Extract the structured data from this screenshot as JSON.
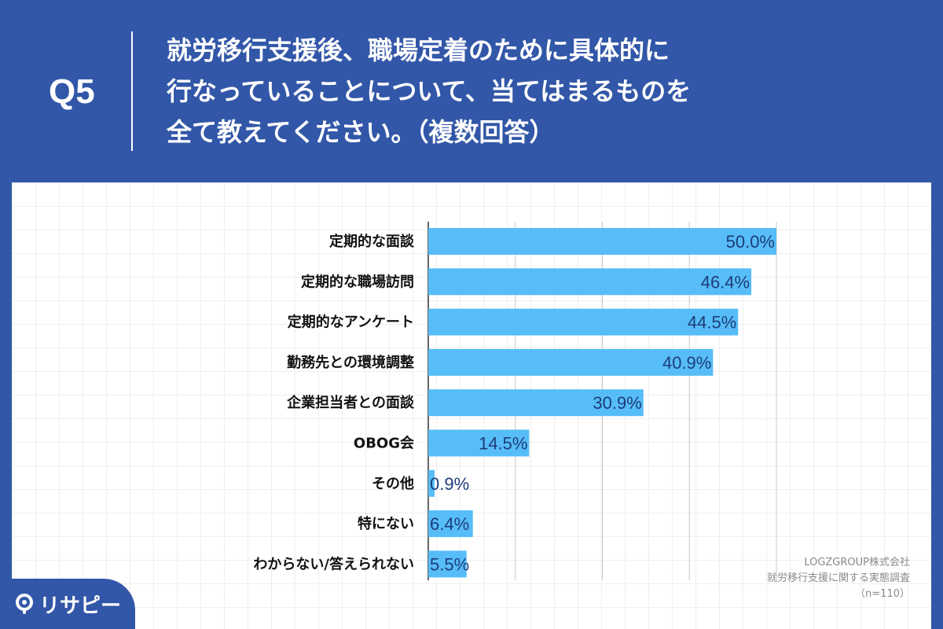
{
  "header": {
    "question_no": "Q5",
    "question_lines": [
      "就労移行支援後、職場定着のために具体的に",
      "行なっていることについて、当てはまるものを",
      "全て教えてください。（複数回答）"
    ]
  },
  "source": {
    "company": "LOGZGROUP株式会社",
    "survey": "就労移行支援に関する実態調査",
    "sample": "（n=110）"
  },
  "logo": {
    "text": "リサピー",
    "icon": "search-pin-icon"
  },
  "colors": {
    "background": "#3257a8",
    "bar": "#56bdf8",
    "value_text": "#1d3c78",
    "panel": "#ffffff"
  },
  "chart_data": {
    "type": "bar",
    "orientation": "horizontal",
    "categories": [
      "定期的な面談",
      "定期的な職場訪問",
      "定期的なアンケート",
      "勤務先との環境調整",
      "企業担当者との面談",
      "OBOG会",
      "その他",
      "特にない",
      "わからない/答えられない"
    ],
    "values": [
      50.0,
      46.4,
      44.5,
      40.9,
      30.9,
      14.5,
      0.9,
      6.4,
      5.5
    ],
    "value_labels": [
      "50.0%",
      "46.4%",
      "44.5%",
      "40.9%",
      "30.9%",
      "14.5%",
      "0.9%",
      "6.4%",
      "5.5%"
    ],
    "unit": "%",
    "xlim": [
      0,
      50
    ],
    "grid": true
  }
}
